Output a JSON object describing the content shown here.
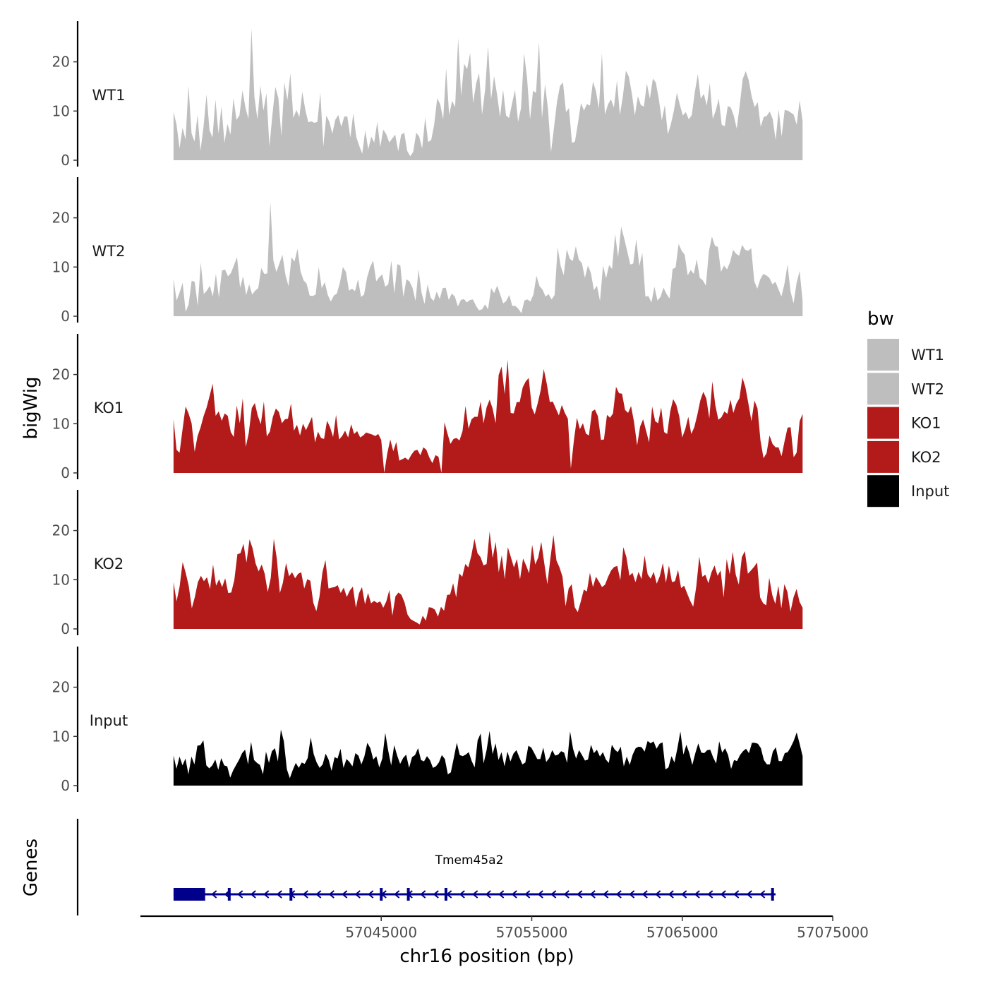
{
  "chart_data": {
    "type": "area",
    "ylabel": "bigWig",
    "xlabel": "chr16 position (bp)",
    "yticks": [
      0,
      10,
      20
    ],
    "ylim": [
      0,
      27
    ],
    "xlim": [
      57029000,
      57075000
    ],
    "xticks": [
      57045000,
      57055000,
      57065000,
      57075000
    ],
    "xtick_labels": [
      "57045000",
      "57055000",
      "57065000",
      "57075000"
    ],
    "x_start": 57031200,
    "x_end": 57073000,
    "legend_title": "bw",
    "series": [
      {
        "name": "WT1",
        "color": "#bebebe",
        "values": [
          9.8,
          7.2,
          2.4,
          6.6,
          4.2,
          15.1,
          5.5,
          3.8,
          9.2,
          1.9,
          6.8,
          13.4,
          6.1,
          4.6,
          12.3,
          5.4,
          10.9,
          3.5,
          7.4,
          5.2,
          12.6,
          8.2,
          9.1,
          14.2,
          10.7,
          8.4,
          26.8,
          12.9,
          8.3,
          15.2,
          10.1,
          13.6,
          2.8,
          9.2,
          14.9,
          12.6,
          4.9,
          15.8,
          12.2,
          17.6,
          8.6,
          10.2,
          8.8,
          13.9,
          10.2,
          7.7,
          7.9,
          7.6,
          7.8,
          13.7,
          2.8,
          9.1,
          7.8,
          5.4,
          8.2,
          9.2,
          6.8,
          8.9,
          8.9,
          4.6,
          9.5,
          4.7,
          2.9,
          1.3,
          6.1,
          2.2,
          4.8,
          3.6,
          7.8,
          2.7,
          6.2,
          5.3,
          3.6,
          4.4,
          5.2,
          1.8,
          5.2,
          5.6,
          1.9,
          0.8,
          1.7,
          5.6,
          4.8,
          2.4,
          8.7,
          3.7,
          4.1,
          7.2,
          12.6,
          11.4,
          8.3,
          18.7,
          9.2,
          12.1,
          10.8,
          24.8,
          13.1,
          19.6,
          18.5,
          21.8,
          11.6,
          15.6,
          17.7,
          9.3,
          14.3,
          23.2,
          12.4,
          17.1,
          13.3,
          8.8,
          14.3,
          9.1,
          8.6,
          11.5,
          14.3,
          7.8,
          10.6,
          21.8,
          16.8,
          8.3,
          14.1,
          13.7,
          24.1,
          8.5,
          15.5,
          10.4,
          1.6,
          6.6,
          11.9,
          15.1,
          15.8,
          9.8,
          10.6,
          3.5,
          3.8,
          7.6,
          11.6,
          10.1,
          11.4,
          11.1,
          16.0,
          14.1,
          10.5,
          21.8,
          9.3,
          11.3,
          12.4,
          10.7,
          16.2,
          9.2,
          13.1,
          18.2,
          17.0,
          13.5,
          9.1,
          13.0,
          11.2,
          10.9,
          15.6,
          12.5,
          16.6,
          15.8,
          12.4,
          8.1,
          11.2,
          5.3,
          7.3,
          10.0,
          13.7,
          11.3,
          9.1,
          9.8,
          8.3,
          9.2,
          13.8,
          17.5,
          12.5,
          13.5,
          11.1,
          15.7,
          8.4,
          10.1,
          12.5,
          7.2,
          6.9,
          11.0,
          10.7,
          9.1,
          6.4,
          11.2,
          16.5,
          18.1,
          16.3,
          12.9,
          10.8,
          11.8,
          6.8,
          8.8,
          9.0,
          9.9,
          8.4,
          4.1,
          10.3,
          4.8,
          10.2,
          10.1,
          9.7,
          9.3,
          7.2,
          12.2,
          7.9
        ]
      },
      {
        "name": "WT2",
        "color": "#bebebe",
        "values": [
          7.6,
          3.2,
          4.8,
          6.8,
          0.9,
          2.4,
          7.2,
          7.0,
          2.1,
          10.9,
          4.5,
          5.2,
          6.2,
          4.0,
          8.6,
          3.8,
          9.3,
          9.5,
          8.1,
          8.8,
          10.4,
          12.0,
          5.8,
          8.1,
          4.3,
          6.5,
          4.4,
          5.2,
          5.7,
          9.8,
          8.6,
          8.7,
          23.2,
          11.4,
          9.0,
          10.7,
          12.5,
          8.4,
          6.1,
          12.0,
          11.1,
          13.7,
          9.1,
          7.3,
          6.6,
          4.2,
          4.1,
          4.4,
          10.0,
          5.7,
          6.9,
          4.3,
          3.0,
          4.2,
          4.6,
          6.8,
          10.0,
          9.0,
          5.2,
          5.6,
          5.1,
          7.5,
          3.9,
          4.4,
          7.9,
          10.0,
          11.3,
          7.1,
          7.9,
          8.5,
          6.0,
          6.5,
          11.3,
          4.6,
          10.6,
          10.3,
          3.9,
          7.5,
          7.1,
          5.8,
          3.1,
          9.5,
          4.8,
          2.5,
          6.5,
          3.8,
          3.1,
          5.0,
          3.5,
          5.7,
          5.8,
          3.3,
          4.6,
          4.0,
          2.0,
          3.3,
          3.5,
          2.8,
          3.3,
          3.4,
          2.1,
          1.2,
          1.4,
          2.4,
          1.4,
          5.7,
          4.7,
          6.2,
          4.4,
          2.6,
          3.1,
          4.3,
          2.1,
          2.1,
          1.5,
          0.6,
          3.2,
          3.4,
          3.0,
          4.4,
          8.2,
          6.1,
          5.4,
          4.0,
          4.5,
          3.4,
          4.3,
          14.0,
          10.2,
          8.3,
          13.6,
          11.7,
          11.2,
          14.2,
          11.5,
          10.8,
          7.8,
          10.3,
          8.8,
          5.3,
          6.2,
          3.1,
          10.3,
          7.7,
          10.4,
          9.6,
          16.7,
          12.0,
          18.2,
          15.8,
          13.2,
          10.5,
          10.7,
          15.7,
          10.2,
          12.9,
          4.0,
          4.1,
          2.8,
          6.0,
          3.2,
          3.9,
          5.8,
          4.5,
          3.6,
          9.6,
          9.9,
          14.7,
          13.3,
          12.5,
          8.3,
          9.4,
          8.6,
          11.6,
          7.8,
          7.3,
          6.2,
          13.2,
          16.2,
          14.3,
          14.1,
          9.0,
          10.3,
          9.5,
          11.0,
          13.5,
          12.7,
          12.3,
          14.5,
          13.5,
          13.3,
          13.8,
          7.1,
          5.6,
          7.5,
          8.6,
          8.3,
          7.8,
          6.5,
          7.0,
          5.5,
          4.0,
          6.6,
          10.5,
          5.0,
          2.6,
          6.8,
          9.2,
          3.1
        ]
      },
      {
        "name": "KO1",
        "color": "#b31b1b",
        "values": [
          10.9,
          4.7,
          4.1,
          8.9,
          13.5,
          12.1,
          10.1,
          4.3,
          7.5,
          9.3,
          11.6,
          13.3,
          15.7,
          18.1,
          11.6,
          12.5,
          10.6,
          12.1,
          11.6,
          8.3,
          7.3,
          13.7,
          10.1,
          15.2,
          5.3,
          8.1,
          13.2,
          14.2,
          11.6,
          9.9,
          14.5,
          7.4,
          8.4,
          11.4,
          13.1,
          12.4,
          10.1,
          10.9,
          11.0,
          14.1,
          8.6,
          9.8,
          7.6,
          10.0,
          8.7,
          10.0,
          11.4,
          6.2,
          8.4,
          7.1,
          6.9,
          10.6,
          9.3,
          7.3,
          11.8,
          6.8,
          7.5,
          8.6,
          7.2,
          9.9,
          7.9,
          8.5,
          7.2,
          7.6,
          8.2,
          8.0,
          7.8,
          7.5,
          7.9,
          6.7,
          0.0,
          3.9,
          6.8,
          4.4,
          6.3,
          2.5,
          2.8,
          3.1,
          2.6,
          3.7,
          4.5,
          4.7,
          3.6,
          5.2,
          4.7,
          3.1,
          2.0,
          3.6,
          3.3,
          0.0,
          10.3,
          8.0,
          5.9,
          6.9,
          7.1,
          6.6,
          8.5,
          13.6,
          9.0,
          10.9,
          11.4,
          11.4,
          14.5,
          10.1,
          13.3,
          14.9,
          13.1,
          10.1,
          19.9,
          21.6,
          16.0,
          23.0,
          12.2,
          12.1,
          14.4,
          14.4,
          17.4,
          18.6,
          19.3,
          13.3,
          11.9,
          14.2,
          16.9,
          21.1,
          18.1,
          14.4,
          14.5,
          13.1,
          11.7,
          13.8,
          12.2,
          11.0,
          0.9,
          6.6,
          11.2,
          8.9,
          10.1,
          8.0,
          7.6,
          12.5,
          12.9,
          11.5,
          6.7,
          6.8,
          11.8,
          11.2,
          12.1,
          17.5,
          16.2,
          16.1,
          12.8,
          12.2,
          13.6,
          10.3,
          5.6,
          9.4,
          10.9,
          8.5,
          6.2,
          13.5,
          10.5,
          10.1,
          13.3,
          8.3,
          7.9,
          12.5,
          15.0,
          13.9,
          11.5,
          7.2,
          8.9,
          11.4,
          7.9,
          9.3,
          11.8,
          14.7,
          16.5,
          15.1,
          11.1,
          18.6,
          13.7,
          10.8,
          11.3,
          12.5,
          12.0,
          14.9,
          12.2,
          14.1,
          15.2,
          19.4,
          17.4,
          14.0,
          10.5,
          14.7,
          13.1,
          6.6,
          3.0,
          4.0,
          7.6,
          5.9,
          5.2,
          5.2,
          3.4,
          6.5,
          9.2,
          9.3,
          3.2,
          4.1,
          10.5,
          12.0
        ]
      },
      {
        "name": "KO2",
        "color": "#b31b1b",
        "values": [
          9.5,
          5.6,
          8.6,
          13.6,
          11.4,
          8.8,
          4.2,
          6.5,
          9.5,
          10.8,
          9.7,
          10.5,
          8.1,
          13.1,
          8.8,
          10.1,
          8.5,
          10.3,
          7.3,
          7.4,
          9.9,
          15.2,
          15.4,
          17.3,
          13.5,
          18.2,
          16.4,
          13.3,
          11.7,
          13.1,
          11.2,
          7.5,
          10.4,
          18.3,
          14.2,
          7.3,
          9.4,
          13.4,
          10.7,
          11.5,
          10.3,
          11.2,
          11.5,
          8.2,
          10.1,
          9.8,
          5.3,
          3.6,
          6.5,
          11.5,
          14.0,
          8.2,
          8.4,
          8.5,
          8.9,
          7.3,
          8.4,
          6.5,
          7.8,
          8.6,
          4.3,
          7.2,
          8.5,
          5.0,
          7.3,
          5.2,
          5.7,
          5.3,
          5.6,
          4.3,
          5.6,
          7.9,
          2.7,
          6.6,
          7.4,
          6.9,
          5.4,
          2.9,
          2.0,
          1.6,
          1.3,
          0.9,
          2.7,
          1.7,
          4.4,
          4.3,
          3.9,
          2.5,
          4.5,
          3.7,
          6.9,
          7.0,
          9.3,
          6.4,
          11.3,
          10.6,
          13.2,
          12.5,
          14.9,
          18.3,
          15.4,
          14.6,
          12.9,
          13.2,
          19.8,
          14.4,
          17.7,
          11.5,
          15.0,
          10.1,
          16.6,
          14.6,
          12.5,
          14.2,
          10.1,
          14.3,
          12.9,
          11.3,
          17.1,
          13.1,
          14.5,
          17.7,
          13.3,
          9.1,
          14.3,
          19.1,
          13.9,
          12.5,
          10.6,
          4.6,
          8.2,
          9.1,
          4.4,
          3.4,
          5.6,
          8.0,
          7.6,
          11.4,
          8.5,
          10.6,
          9.6,
          8.5,
          9.0,
          10.6,
          11.9,
          12.6,
          12.8,
          9.9,
          16.6,
          14.6,
          10.8,
          11.4,
          9.5,
          11.6,
          10.1,
          14.9,
          11.1,
          10.2,
          11.6,
          9.2,
          10.7,
          13.4,
          9.4,
          12.9,
          9.5,
          9.7,
          12.0,
          8.3,
          8.8,
          7.2,
          5.7,
          4.5,
          8.6,
          14.7,
          10.6,
          11.0,
          9.3,
          11.5,
          12.9,
          10.8,
          11.9,
          6.4,
          14.2,
          11.1,
          15.7,
          11.0,
          9.0,
          14.6,
          15.8,
          11.2,
          11.9,
          12.6,
          13.5,
          6.4,
          5.2,
          4.8,
          10.4,
          6.9,
          5.1,
          8.8,
          4.2,
          9.1,
          7.5,
          3.5,
          6.4,
          8.1,
          5.5,
          4.3
        ]
      },
      {
        "name": "Input",
        "color": "#000000",
        "values": [
          6.1,
          3.4,
          5.9,
          4.1,
          5.5,
          2.3,
          5.9,
          4.3,
          8.1,
          8.2,
          9.2,
          4.1,
          3.5,
          4.1,
          5.3,
          3.2,
          5.6,
          4.1,
          3.9,
          1.6,
          3.1,
          4.2,
          5.3,
          6.6,
          7.3,
          4.3,
          8.9,
          5.2,
          4.6,
          4.2,
          2.3,
          6.9,
          4.6,
          7.0,
          7.6,
          4.9,
          11.4,
          9.0,
          3.3,
          1.5,
          3.2,
          4.6,
          3.6,
          4.7,
          4.4,
          5.6,
          9.8,
          6.4,
          4.7,
          3.6,
          4.3,
          6.5,
          5.3,
          3.0,
          5.8,
          5.5,
          7.5,
          3.6,
          5.4,
          4.8,
          3.9,
          6.6,
          6.1,
          4.3,
          5.9,
          8.7,
          7.6,
          5.3,
          6.0,
          3.7,
          5.5,
          10.7,
          7.1,
          4.1,
          8.2,
          6.1,
          4.4,
          5.6,
          6.3,
          3.6,
          5.8,
          6.2,
          7.6,
          5.2,
          4.9,
          6.0,
          5.2,
          3.6,
          3.9,
          4.7,
          6.2,
          5.4,
          2.3,
          2.7,
          5.6,
          8.7,
          6.2,
          6.0,
          6.3,
          6.8,
          5.0,
          3.7,
          9.2,
          10.6,
          4.5,
          7.2,
          11.1,
          6.4,
          8.6,
          5.2,
          6.8,
          3.9,
          6.9,
          4.9,
          6.5,
          7.2,
          5.7,
          4.3,
          4.7,
          8.1,
          7.7,
          6.6,
          5.4,
          5.4,
          7.7,
          4.8,
          5.6,
          7.2,
          6.1,
          6.3,
          7.0,
          6.7,
          4.6,
          11.0,
          7.5,
          5.5,
          7.2,
          6.2,
          5.1,
          5.3,
          8.3,
          6.6,
          7.3,
          5.9,
          6.8,
          5.3,
          4.6,
          8.3,
          7.3,
          6.8,
          7.9,
          3.9,
          5.9,
          4.2,
          6.3,
          7.6,
          7.9,
          7.8,
          6.9,
          9.1,
          8.6,
          9.0,
          7.5,
          8.5,
          8.8,
          3.3,
          3.7,
          6.0,
          4.7,
          7.6,
          11.0,
          6.3,
          8.3,
          6.6,
          4.2,
          6.6,
          8.6,
          6.7,
          6.6,
          7.2,
          7.3,
          5.7,
          4.5,
          9.0,
          6.7,
          7.6,
          6.2,
          3.4,
          5.2,
          5.0,
          6.2,
          7.0,
          7.5,
          6.6,
          8.7,
          8.7,
          8.5,
          7.6,
          5.2,
          4.3,
          4.3,
          6.9,
          7.8,
          5.0,
          5.0,
          6.6,
          6.8,
          7.8,
          9.1,
          10.8,
          8.5,
          6.0
        ]
      }
    ],
    "legend": [
      "WT1",
      "WT2",
      "KO1",
      "KO2",
      "Input"
    ],
    "genes_panel": {
      "label": "Genes",
      "gene_name": "Tmem45a2",
      "strand": "-",
      "color": "#00008b",
      "tx_start": 57031200,
      "tx_end": 57071200,
      "thick_block": [
        57031200,
        57033300
      ],
      "exons": [
        57034900,
        57039000,
        57045000,
        57046800,
        57049300,
        57071000
      ]
    }
  }
}
